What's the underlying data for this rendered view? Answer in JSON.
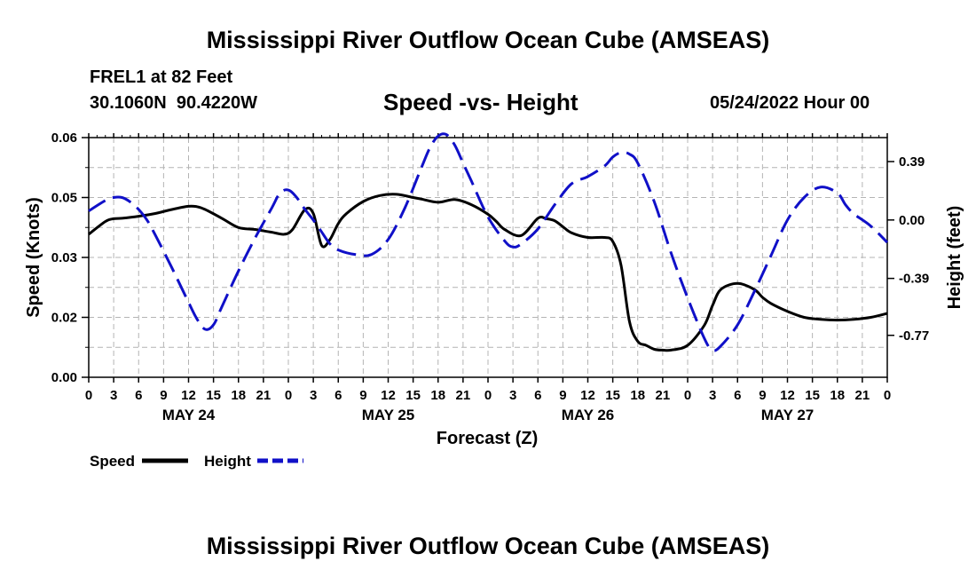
{
  "title": "Mississippi River Outflow Ocean Cube (AMSEAS)",
  "footer_title": "Mississippi River Outflow Ocean Cube (AMSEAS)",
  "station": {
    "name": "FREL1 at 82 Feet",
    "coords": "30.1060N  90.4220W"
  },
  "subtitle": "Speed -vs- Height",
  "issued": "05/24/2022 Hour 00",
  "legend": {
    "speed_label": "Speed",
    "height_label": "Height"
  },
  "colors": {
    "speed": "#000000",
    "height": "#1010c8",
    "grid": "#b4b4b4"
  },
  "chart_data": {
    "type": "line",
    "title": "Speed -vs- Height",
    "xlabel": "Forecast (Z)",
    "ylabel": "Speed (Knots)",
    "y2label": "Height (feet)",
    "x_range_hours": [
      0,
      96
    ],
    "ylim": [
      0,
      0.06
    ],
    "y2lim": [
      -1.05,
      0.55
    ],
    "y_ticks": [
      "0.00",
      "0.02",
      "0.03",
      "0.05",
      "0.06"
    ],
    "y_tick_values": [
      0,
      0.015,
      0.03,
      0.045,
      0.06
    ],
    "y2_ticks": [
      "-0.77",
      "-0.39",
      "0.00",
      "0.39"
    ],
    "y2_tick_values": [
      -0.77,
      -0.39,
      0.0,
      0.39
    ],
    "x_tick_labels": [
      "0",
      "3",
      "6",
      "9",
      "12",
      "15",
      "18",
      "21",
      "0",
      "3",
      "6",
      "9",
      "12",
      "15",
      "18",
      "21",
      "0",
      "3",
      "6",
      "9",
      "12",
      "15",
      "18",
      "21",
      "0",
      "3",
      "6",
      "9",
      "12",
      "15",
      "18",
      "21",
      "0"
    ],
    "day_labels": [
      {
        "label": "MAY 24",
        "hour": 12
      },
      {
        "label": "MAY 25",
        "hour": 36
      },
      {
        "label": "MAY 26",
        "hour": 60
      },
      {
        "label": "MAY 27",
        "hour": 84
      }
    ],
    "grid": true,
    "series": [
      {
        "name": "Speed",
        "axis": "left",
        "style": "solid",
        "x": [
          0,
          2,
          3,
          4,
          6,
          8,
          10,
          12,
          13,
          14,
          16,
          18,
          20,
          22,
          23.5,
          24.5,
          26,
          27,
          28,
          29,
          30,
          31,
          33,
          35,
          37,
          39,
          40,
          42,
          44,
          46,
          48,
          49,
          50,
          52,
          54,
          55,
          56,
          57,
          58,
          60,
          62,
          63,
          64,
          65,
          66,
          67,
          68,
          69,
          70,
          72,
          74,
          75,
          76,
          78,
          80,
          81,
          82,
          84,
          86,
          88,
          90,
          92,
          94,
          96
        ],
        "values": [
          0.0358,
          0.039,
          0.0397,
          0.0398,
          0.0403,
          0.041,
          0.042,
          0.0428,
          0.0427,
          0.042,
          0.0398,
          0.0375,
          0.037,
          0.0363,
          0.0358,
          0.037,
          0.042,
          0.041,
          0.033,
          0.0345,
          0.0385,
          0.041,
          0.044,
          0.0455,
          0.0458,
          0.045,
          0.0446,
          0.0438,
          0.0445,
          0.0432,
          0.0408,
          0.039,
          0.037,
          0.0355,
          0.0398,
          0.0397,
          0.0392,
          0.0377,
          0.0362,
          0.035,
          0.035,
          0.034,
          0.028,
          0.014,
          0.009,
          0.008,
          0.007,
          0.0068,
          0.0068,
          0.008,
          0.013,
          0.018,
          0.022,
          0.0235,
          0.022,
          0.02,
          0.0185,
          0.0165,
          0.015,
          0.0145,
          0.0143,
          0.0145,
          0.015,
          0.016
        ]
      },
      {
        "name": "Height",
        "axis": "right",
        "style": "dashed",
        "x": [
          0,
          2,
          3,
          4,
          5,
          6,
          7,
          8,
          10,
          12,
          13,
          14,
          15,
          16,
          18,
          20,
          22,
          23,
          24,
          25,
          26,
          27,
          28,
          29,
          30,
          32,
          34,
          36,
          38,
          40,
          41,
          42,
          43,
          44,
          45,
          46,
          48,
          50,
          51,
          52,
          54,
          56,
          58,
          60,
          62,
          63,
          64,
          65,
          66,
          68,
          70,
          72,
          74,
          75,
          76,
          78,
          80,
          82,
          84,
          86,
          88,
          90,
          91,
          92,
          94,
          96
        ],
        "values": [
          0.06,
          0.13,
          0.15,
          0.15,
          0.12,
          0.07,
          0.0,
          -0.1,
          -0.32,
          -0.55,
          -0.66,
          -0.73,
          -0.7,
          -0.58,
          -0.34,
          -0.12,
          0.08,
          0.18,
          0.2,
          0.15,
          0.07,
          0.0,
          -0.08,
          -0.16,
          -0.2,
          -0.23,
          -0.23,
          -0.13,
          0.08,
          0.35,
          0.48,
          0.56,
          0.57,
          0.5,
          0.38,
          0.26,
          0.02,
          -0.14,
          -0.18,
          -0.16,
          -0.06,
          0.1,
          0.24,
          0.29,
          0.36,
          0.42,
          0.45,
          0.44,
          0.38,
          0.12,
          -0.22,
          -0.52,
          -0.79,
          -0.87,
          -0.84,
          -0.7,
          -0.48,
          -0.24,
          0.0,
          0.15,
          0.22,
          0.18,
          0.1,
          0.04,
          -0.04,
          -0.15
        ]
      }
    ]
  }
}
